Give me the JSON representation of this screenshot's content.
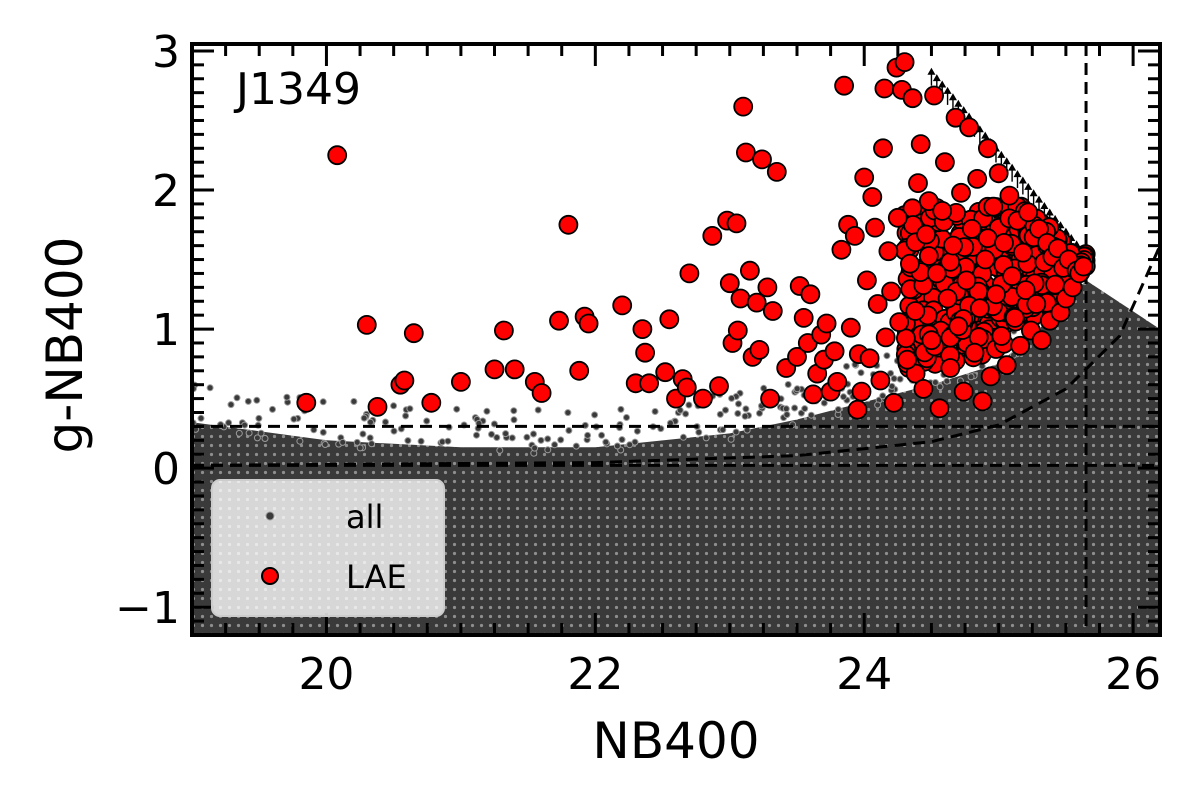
{
  "chart_data": {
    "type": "scatter",
    "title": "",
    "field_label": "J1349",
    "xlabel": "NB400",
    "ylabel": "g-NB400",
    "xlim": [
      19.0,
      26.2
    ],
    "ylim": [
      -1.2,
      3.05
    ],
    "x_ticks": [
      20,
      22,
      24,
      26
    ],
    "x_tick_labels": [
      "20",
      "22",
      "24",
      "26"
    ],
    "y_ticks": [
      -1,
      0,
      1,
      2,
      3
    ],
    "y_tick_labels": [
      "−1",
      "0",
      "1",
      "2",
      "3"
    ],
    "grid": false,
    "legend_position": "lower-left",
    "colors": {
      "lae": "#ff0000",
      "all": "#3a3a3a",
      "all_edge": "#9a9a9a",
      "lines": "#000000"
    },
    "reference_lines": {
      "nb400_limit": 25.65,
      "color_cut_low": 0.02,
      "color_cut_high": 0.3,
      "error_curve_points": [
        [
          19.0,
          0.02
        ],
        [
          22.0,
          0.04
        ],
        [
          23.5,
          0.09
        ],
        [
          24.5,
          0.19
        ],
        [
          25.0,
          0.31
        ],
        [
          25.5,
          0.57
        ],
        [
          25.9,
          0.95
        ],
        [
          26.2,
          1.6
        ]
      ]
    },
    "series": [
      {
        "name": "all",
        "kind": "parent sample (dense cloud, ~all detected objects)",
        "envelope_points": [
          [
            19.0,
            -1.2
          ],
          [
            19.0,
            0.33
          ],
          [
            20.0,
            0.2
          ],
          [
            21.0,
            0.15
          ],
          [
            22.0,
            0.15
          ],
          [
            23.0,
            0.25
          ],
          [
            23.5,
            0.35
          ],
          [
            24.5,
            0.6
          ],
          [
            25.0,
            0.75
          ],
          [
            25.3,
            1.0
          ],
          [
            25.65,
            1.35
          ],
          [
            26.2,
            1.0
          ],
          [
            26.2,
            -1.2
          ]
        ]
      },
      {
        "name": "LAE",
        "points": [
          [
            19.85,
            0.47
          ],
          [
            20.08,
            2.25
          ],
          [
            20.3,
            1.03
          ],
          [
            20.38,
            0.44
          ],
          [
            20.55,
            0.6
          ],
          [
            20.58,
            0.63
          ],
          [
            20.65,
            0.97
          ],
          [
            20.78,
            0.47
          ],
          [
            21.0,
            0.62
          ],
          [
            21.25,
            0.71
          ],
          [
            21.32,
            0.99
          ],
          [
            21.4,
            0.71
          ],
          [
            21.55,
            0.62
          ],
          [
            21.6,
            0.54
          ],
          [
            21.73,
            1.06
          ],
          [
            21.8,
            1.75
          ],
          [
            21.88,
            0.7
          ],
          [
            21.92,
            1.09
          ],
          [
            21.95,
            1.04
          ],
          [
            22.2,
            1.17
          ],
          [
            22.3,
            0.61
          ],
          [
            22.35,
            1.0
          ],
          [
            22.37,
            0.83
          ],
          [
            22.4,
            0.61
          ],
          [
            22.52,
            0.69
          ],
          [
            22.55,
            1.07
          ],
          [
            22.6,
            0.5
          ],
          [
            22.65,
            0.64
          ],
          [
            22.68,
            0.58
          ],
          [
            22.7,
            1.4
          ],
          [
            22.8,
            0.5
          ],
          [
            22.87,
            1.67
          ],
          [
            22.92,
            0.59
          ],
          [
            22.98,
            1.78
          ],
          [
            23.0,
            1.33
          ],
          [
            23.02,
            0.9
          ],
          [
            23.05,
            1.76
          ],
          [
            23.06,
            0.99
          ],
          [
            23.08,
            1.22
          ],
          [
            23.1,
            2.6
          ],
          [
            23.12,
            2.27
          ],
          [
            23.15,
            1.42
          ],
          [
            23.17,
            0.8
          ],
          [
            23.2,
            1.19
          ],
          [
            23.22,
            0.85
          ],
          [
            23.24,
            2.22
          ],
          [
            23.28,
            1.3
          ],
          [
            23.3,
            0.5
          ],
          [
            23.32,
            1.13
          ],
          [
            23.35,
            2.13
          ],
          [
            23.42,
            0.72
          ],
          [
            23.5,
            0.8
          ],
          [
            23.52,
            1.31
          ],
          [
            23.55,
            1.08
          ],
          [
            23.58,
            0.9
          ],
          [
            23.6,
            1.25
          ],
          [
            23.62,
            0.53
          ],
          [
            23.65,
            0.68
          ],
          [
            23.68,
            0.96
          ],
          [
            23.7,
            0.78
          ],
          [
            23.72,
            1.04
          ],
          [
            23.75,
            0.55
          ],
          [
            23.78,
            0.84
          ],
          [
            23.8,
            0.62
          ],
          [
            23.83,
            1.57
          ],
          [
            23.85,
            2.75
          ],
          [
            23.88,
            1.75
          ],
          [
            23.9,
            1.01
          ],
          [
            23.93,
            1.67
          ],
          [
            23.95,
            0.42
          ],
          [
            23.96,
            0.82
          ],
          [
            23.98,
            0.55
          ],
          [
            24.0,
            2.09
          ],
          [
            24.02,
            1.35
          ],
          [
            24.04,
            0.79
          ],
          [
            24.06,
            1.95
          ],
          [
            24.08,
            1.73
          ],
          [
            24.1,
            1.18
          ],
          [
            24.12,
            0.63
          ],
          [
            24.14,
            2.3
          ],
          [
            24.15,
            2.73
          ],
          [
            24.16,
            0.94
          ],
          [
            24.18,
            1.56
          ],
          [
            24.2,
            1.27
          ],
          [
            24.22,
            0.47
          ],
          [
            24.24,
            2.88
          ],
          [
            24.25,
            1.8
          ],
          [
            24.26,
            1.05
          ],
          [
            24.28,
            2.72
          ],
          [
            24.3,
            2.92
          ],
          [
            24.32,
            0.78
          ],
          [
            24.34,
            1.47
          ],
          [
            24.36,
            2.66
          ],
          [
            24.38,
            1.13
          ],
          [
            24.4,
            2.05
          ],
          [
            24.42,
            2.33
          ],
          [
            24.44,
            0.57
          ],
          [
            24.46,
            1.68
          ],
          [
            24.48,
            1.92
          ],
          [
            24.5,
            0.92
          ],
          [
            24.52,
            2.68
          ],
          [
            24.54,
            1.4
          ],
          [
            24.56,
            0.43
          ],
          [
            24.58,
            1.85
          ],
          [
            24.6,
            2.2
          ],
          [
            24.62,
            1.22
          ],
          [
            24.64,
            0.72
          ],
          [
            24.66,
            1.6
          ],
          [
            24.68,
            2.52
          ],
          [
            24.7,
            1.02
          ],
          [
            24.72,
            1.98
          ],
          [
            24.74,
            0.55
          ],
          [
            24.76,
            1.35
          ],
          [
            24.78,
            2.45
          ],
          [
            24.8,
            1.72
          ],
          [
            24.82,
            0.83
          ],
          [
            24.84,
            2.08
          ],
          [
            24.86,
            1.15
          ],
          [
            24.88,
            0.48
          ],
          [
            24.9,
            1.5
          ],
          [
            24.92,
            2.3
          ],
          [
            24.94,
            0.66
          ],
          [
            24.96,
            1.88
          ],
          [
            24.98,
            1.25
          ],
          [
            25.0,
            2.12
          ],
          [
            25.02,
            0.95
          ],
          [
            25.04,
            1.62
          ],
          [
            25.06,
            0.74
          ],
          [
            25.08,
            1.96
          ],
          [
            25.1,
            1.38
          ],
          [
            25.12,
            1.08
          ],
          [
            25.14,
            1.78
          ],
          [
            25.16,
            0.88
          ],
          [
            25.18,
            1.55
          ],
          [
            25.2,
            1.28
          ],
          [
            25.22,
            1.84
          ],
          [
            25.24,
            0.99
          ],
          [
            25.26,
            1.66
          ],
          [
            25.28,
            1.18
          ],
          [
            25.3,
            1.72
          ],
          [
            25.32,
            0.92
          ],
          [
            25.34,
            1.48
          ],
          [
            25.36,
            1.62
          ],
          [
            25.38,
            1.06
          ],
          [
            25.4,
            1.52
          ],
          [
            25.42,
            1.32
          ],
          [
            25.44,
            1.58
          ],
          [
            25.46,
            1.12
          ],
          [
            25.48,
            1.44
          ],
          [
            25.5,
            1.22
          ],
          [
            25.52,
            1.5
          ],
          [
            25.55,
            1.3
          ],
          [
            25.58,
            1.42
          ],
          [
            25.6,
            1.4
          ],
          [
            25.63,
            1.45
          ]
        ],
        "dense_region": {
          "x": [
            24.3,
            25.65
          ],
          "y": [
            0.4,
            1.9
          ],
          "approx_count": 420
        }
      }
    ],
    "upper_limit_arrows": {
      "x_range": [
        24.5,
        25.6
      ],
      "description": "lower-limit arrows along NB400 detection limit line"
    },
    "legend": {
      "entries": [
        "all",
        "LAE"
      ]
    }
  }
}
